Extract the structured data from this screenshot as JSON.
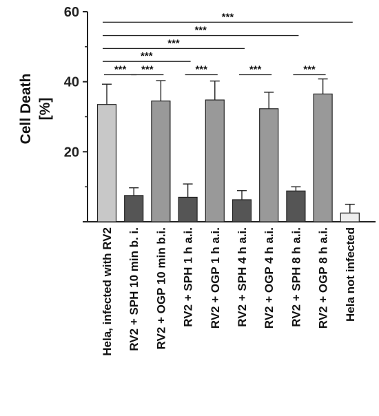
{
  "chart_data": {
    "type": "bar",
    "title": "",
    "ylabel_line1": "Cell  Death",
    "ylabel_line2": "[%]",
    "xlabel": "",
    "ylim": [
      0,
      60
    ],
    "yticks": [
      0,
      20,
      40,
      60
    ],
    "ytick_labels": [
      "",
      "20",
      "40",
      "60"
    ],
    "grid": false,
    "categories": [
      "Hela, infected with RV2",
      "RV2 + SPH 10 min b. i.",
      "RV2 + OGP 10 min b.i.",
      "RV2 + SPH 1 h a.i.",
      "RV2 + OGP 1 h a.i.",
      "RV2 + SPH 4 h a.i.",
      "RV2 + OGP 4 h a.i.",
      "RV2 + SPH 8 h a.i.",
      "RV2 + OGP 8 h a.i.",
      "Hela not infected"
    ],
    "values": [
      33.5,
      7.5,
      34.5,
      7,
      34.8,
      6.3,
      32.3,
      8.8,
      36.5,
      2.5
    ],
    "errors": [
      5.8,
      2.2,
      5.8,
      3.8,
      5.4,
      2.6,
      4.7,
      1.2,
      4.3,
      2.5
    ],
    "colors": [
      "#c8c8c8",
      "#555555",
      "#999999",
      "#555555",
      "#999999",
      "#555555",
      "#999999",
      "#555555",
      "#999999",
      "#eeeeee"
    ],
    "significance": [
      {
        "from": 0,
        "to": 9,
        "y": 57,
        "label": "***"
      },
      {
        "from": 0,
        "to": 7,
        "y": 53.2,
        "label": "***"
      },
      {
        "from": 0,
        "to": 5,
        "y": 49.5,
        "label": "***"
      },
      {
        "from": 0,
        "to": 3,
        "y": 45.8,
        "label": "***"
      },
      {
        "from": 0,
        "to": 1,
        "y": 42,
        "label": "***"
      },
      {
        "from": 1,
        "to": 2,
        "y": 42,
        "label": "***"
      },
      {
        "from": 3,
        "to": 4,
        "y": 42,
        "label": "***"
      },
      {
        "from": 5,
        "to": 6,
        "y": 42,
        "label": "***"
      },
      {
        "from": 7,
        "to": 8,
        "y": 42,
        "label": "***"
      }
    ]
  }
}
